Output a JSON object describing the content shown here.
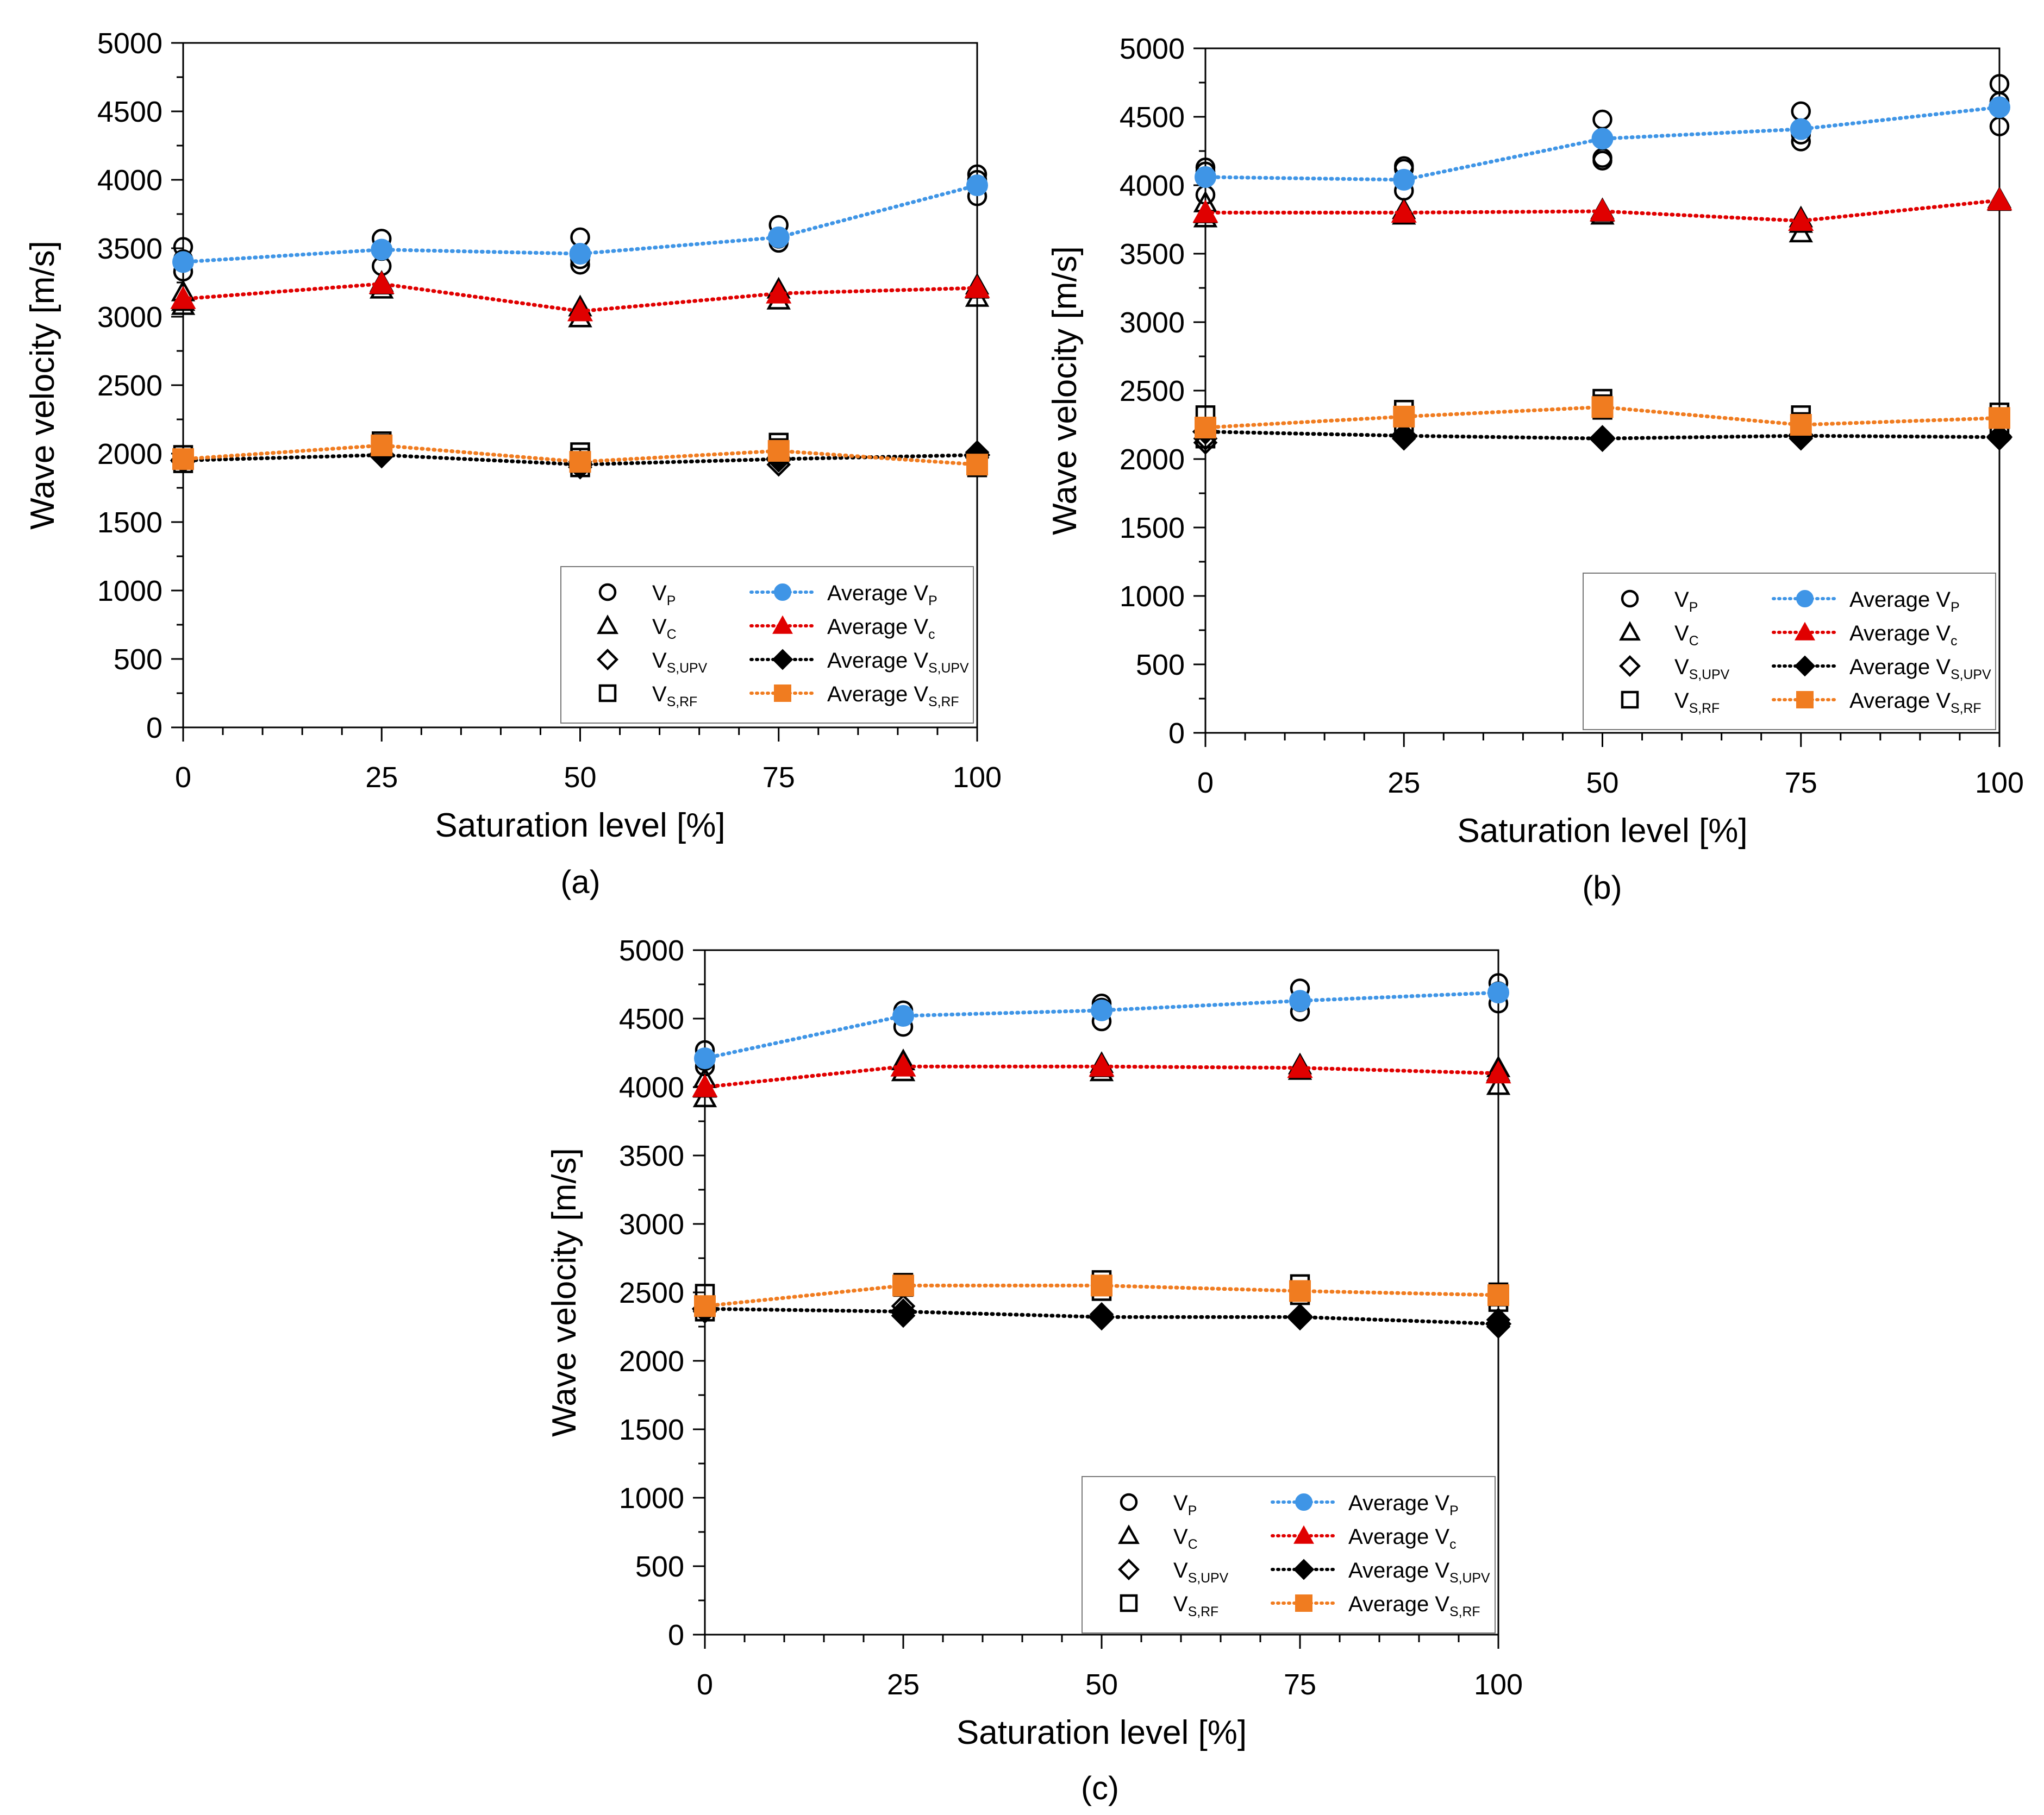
{
  "chart_data": [
    {
      "type": "line",
      "panel_label": "(a)",
      "xlabel": "Saturation level [%]",
      "ylabel": "Wave velocity [m/s]",
      "xlim": [
        0,
        100
      ],
      "ylim": [
        0,
        5000
      ],
      "x_ticks": [
        0,
        25,
        50,
        75,
        100
      ],
      "x_tick_labels": [
        "0",
        "25",
        "50",
        "75",
        "100"
      ],
      "y_ticks": [
        0,
        500,
        1000,
        1500,
        2000,
        2500,
        3000,
        3500,
        4000,
        4500,
        5000
      ],
      "y_tick_labels": [
        "0",
        "500",
        "1000",
        "1500",
        "2000",
        "2500",
        "3000",
        "3500",
        "4000",
        "4500",
        "5000"
      ],
      "legend_position": "bottom-right",
      "x": [
        0,
        25,
        50,
        75,
        100
      ],
      "samples": {
        "VP": [
          [
            3510,
            3420,
            3330
          ],
          [
            3570,
            3480,
            3370
          ],
          [
            3580,
            3420,
            3380
          ],
          [
            3670,
            3570,
            3540
          ],
          [
            4040,
            4000,
            3880
          ]
        ],
        "VC": [
          [
            3180,
            3110,
            3080
          ],
          [
            3250,
            3230,
            3200
          ],
          [
            3070,
            3040,
            2990
          ],
          [
            3200,
            3170,
            3120
          ],
          [
            3230,
            3200,
            3140
          ]
        ],
        "VSUPV": [
          [
            1960,
            1950,
            1940
          ],
          [
            2000,
            1990,
            1980
          ],
          [
            1940,
            1920,
            1900
          ],
          [
            1970,
            1950,
            1920
          ],
          [
            2010,
            1990,
            1970
          ]
        ],
        "VSRF": [
          [
            1990,
            1960,
            1930
          ],
          [
            2090,
            2070,
            2050
          ],
          [
            2010,
            1970,
            1900
          ],
          [
            2080,
            2040,
            2000
          ],
          [
            1940,
            1920,
            1900
          ]
        ]
      },
      "series": [
        {
          "key": "VP",
          "name": "Average VP",
          "values": [
            3400,
            3490,
            3460,
            3580,
            3960
          ],
          "color": "#3f95e6"
        },
        {
          "key": "VC",
          "name": "Average Vc",
          "values": [
            3130,
            3240,
            3040,
            3170,
            3210
          ],
          "color": "#e00000"
        },
        {
          "key": "VSUPV",
          "name": "Average VS,UPV",
          "values": [
            1950,
            1990,
            1920,
            1960,
            1990
          ],
          "color": "#000000"
        },
        {
          "key": "VSRF",
          "name": "Average VS,RF",
          "values": [
            1960,
            2060,
            1940,
            2020,
            1920
          ],
          "color": "#f07c20"
        }
      ]
    },
    {
      "type": "line",
      "panel_label": "(b)",
      "xlabel": "Saturation level [%]",
      "ylabel": "Wave velocity [m/s]",
      "xlim": [
        0,
        100
      ],
      "ylim": [
        0,
        5000
      ],
      "x_ticks": [
        0,
        25,
        50,
        75,
        100
      ],
      "x_tick_labels": [
        "0",
        "25",
        "50",
        "75",
        "100"
      ],
      "y_ticks": [
        0,
        500,
        1000,
        1500,
        2000,
        2500,
        3000,
        3500,
        4000,
        4500,
        5000
      ],
      "y_tick_labels": [
        "0",
        "500",
        "1000",
        "1500",
        "2000",
        "2500",
        "3000",
        "3500",
        "4000",
        "4500",
        "5000"
      ],
      "legend_position": "bottom-right",
      "x": [
        0,
        25,
        50,
        75,
        100
      ],
      "samples": {
        "VP": [
          [
            4130,
            4100,
            3930
          ],
          [
            4140,
            4120,
            3960
          ],
          [
            4480,
            4200,
            4180
          ],
          [
            4540,
            4370,
            4320
          ],
          [
            4740,
            4610,
            4430
          ]
        ],
        "VC": [
          [
            3870,
            3790,
            3760
          ],
          [
            3820,
            3800,
            3780
          ],
          [
            3820,
            3800,
            3780
          ],
          [
            3760,
            3720,
            3650
          ],
          [
            3900,
            3890,
            3880
          ]
        ],
        "VSUPV": [
          [
            2200,
            2150,
            2120
          ],
          [
            2180,
            2160,
            2150
          ],
          [
            2160,
            2150,
            2140
          ],
          [
            2180,
            2160,
            2150
          ],
          [
            2170,
            2160,
            2150
          ]
        ],
        "VSRF": [
          [
            2320,
            2230,
            2150
          ],
          [
            2360,
            2310,
            2240
          ],
          [
            2440,
            2400,
            2360
          ],
          [
            2320,
            2270,
            2230
          ],
          [
            2340,
            2300,
            2260
          ]
        ]
      },
      "series": [
        {
          "key": "VP",
          "name": "Average VP",
          "values": [
            4060,
            4040,
            4340,
            4410,
            4570
          ],
          "color": "#3f95e6"
        },
        {
          "key": "VC",
          "name": "Average Vc",
          "values": [
            3800,
            3800,
            3810,
            3740,
            3890
          ],
          "color": "#e00000"
        },
        {
          "key": "VSUPV",
          "name": "Average VS,UPV",
          "values": [
            2200,
            2170,
            2150,
            2170,
            2160
          ],
          "color": "#000000"
        },
        {
          "key": "VSRF",
          "name": "Average VS,RF",
          "values": [
            2230,
            2310,
            2380,
            2250,
            2300
          ],
          "color": "#f07c20"
        }
      ]
    },
    {
      "type": "line",
      "panel_label": "(c)",
      "xlabel": "Saturation level [%]",
      "ylabel": "Wave velocity [m/s]",
      "xlim": [
        0,
        100
      ],
      "ylim": [
        0,
        5000
      ],
      "x_ticks": [
        0,
        25,
        50,
        75,
        100
      ],
      "x_tick_labels": [
        "0",
        "25",
        "50",
        "75",
        "100"
      ],
      "y_ticks": [
        0,
        500,
        1000,
        1500,
        2000,
        2500,
        3000,
        3500,
        4000,
        4500,
        5000
      ],
      "y_tick_labels": [
        "0",
        "500",
        "1000",
        "1500",
        "2000",
        "2500",
        "3000",
        "3500",
        "4000",
        "4500",
        "5000"
      ],
      "legend_position": "bottom-left",
      "x": [
        0,
        25,
        50,
        75,
        100
      ],
      "samples": {
        "VP": [
          [
            4270,
            4190,
            4150
          ],
          [
            4560,
            4520,
            4440
          ],
          [
            4610,
            4580,
            4480
          ],
          [
            4720,
            4620,
            4550
          ],
          [
            4760,
            4700,
            4610
          ]
        ],
        "VC": [
          [
            4060,
            3990,
            3920
          ],
          [
            4190,
            4150,
            4110
          ],
          [
            4170,
            4140,
            4110
          ],
          [
            4160,
            4140,
            4120
          ],
          [
            4140,
            4110,
            4010
          ]
        ],
        "VSUPV": [
          [
            2380,
            2370,
            2360
          ],
          [
            2400,
            2350,
            2330
          ],
          [
            2340,
            2320,
            2310
          ],
          [
            2330,
            2320,
            2310
          ],
          [
            2300,
            2270,
            2250
          ]
        ],
        "VSRF": [
          [
            2490,
            2400,
            2360
          ],
          [
            2570,
            2550,
            2540
          ],
          [
            2590,
            2550,
            2510
          ],
          [
            2560,
            2510,
            2480
          ],
          [
            2500,
            2470,
            2430
          ]
        ]
      },
      "series": [
        {
          "key": "VP",
          "name": "Average VP",
          "values": [
            4210,
            4520,
            4560,
            4630,
            4690
          ],
          "color": "#3f95e6"
        },
        {
          "key": "VC",
          "name": "Average Vc",
          "values": [
            4000,
            4150,
            4150,
            4140,
            4100
          ],
          "color": "#e00000"
        },
        {
          "key": "VSUPV",
          "name": "Average VS,UPV",
          "values": [
            2380,
            2360,
            2320,
            2320,
            2270
          ],
          "color": "#000000"
        },
        {
          "key": "VSRF",
          "name": "Average VS,RF",
          "values": [
            2400,
            2550,
            2550,
            2510,
            2480
          ],
          "color": "#f07c20"
        }
      ]
    }
  ],
  "legend": {
    "sample_labels": {
      "VP": {
        "main": "V",
        "sub": "P"
      },
      "VC": {
        "main": "V",
        "sub": "C"
      },
      "VSUPV": {
        "main": "V",
        "sub": "S,UPV"
      },
      "VSRF": {
        "main": "V",
        "sub": "S,RF"
      }
    },
    "average_labels": {
      "VP": {
        "main": "Average V",
        "sub": "P"
      },
      "VC": {
        "main": "Average V",
        "sub": "c"
      },
      "VSUPV": {
        "main": "Average V",
        "sub": "S,UPV"
      },
      "VSRF": {
        "main": "Average V",
        "sub": "S,RF"
      }
    }
  }
}
